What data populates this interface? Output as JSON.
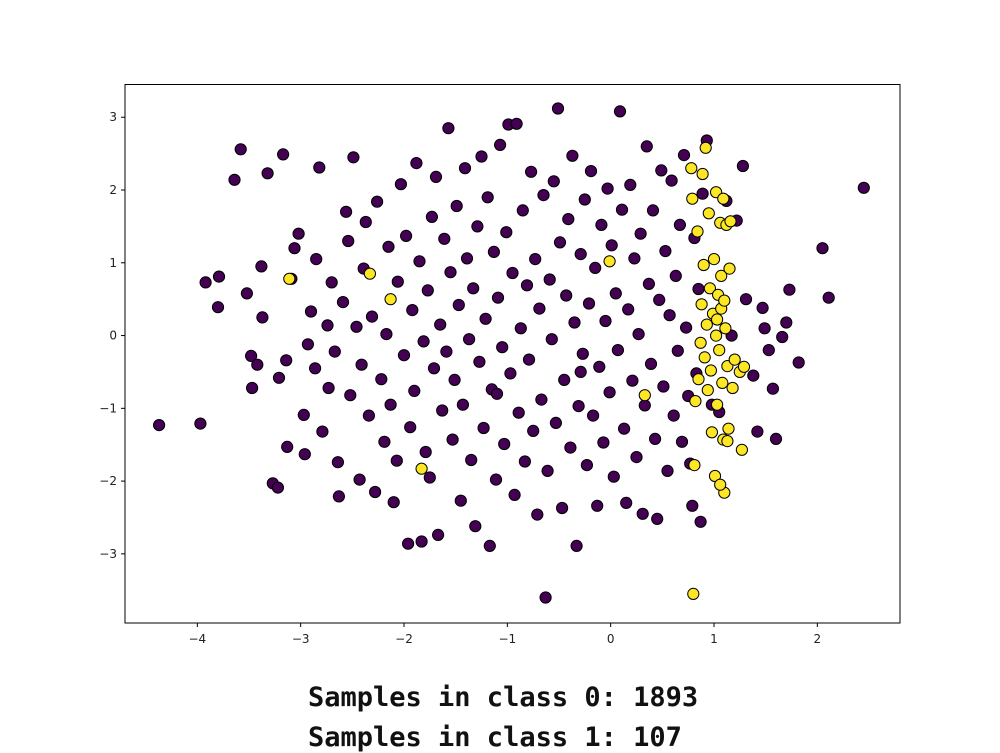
{
  "captions": {
    "class0": "Samples in class 0: 1893",
    "class1": "Samples in class 1: 107"
  },
  "colors": {
    "class0": "#440154",
    "class1": "#fde725",
    "edge": "#000000"
  },
  "chart_data": {
    "type": "scatter",
    "title": "",
    "xlabel": "",
    "ylabel": "",
    "xlim": [
      -4.7,
      2.8
    ],
    "ylim": [
      -3.95,
      3.45
    ],
    "grid": false,
    "xticks": [
      -4,
      -3,
      -2,
      -1,
      0,
      1,
      2
    ],
    "yticks": [
      -3,
      -2,
      -1,
      0,
      1,
      2,
      3
    ],
    "series": [
      {
        "class": 0,
        "color": "#440154",
        "points": [
          [
            -4.37,
            -1.23
          ],
          [
            -3.97,
            -1.21
          ],
          [
            -3.92,
            0.73
          ],
          [
            -3.8,
            0.39
          ],
          [
            -3.79,
            0.81
          ],
          [
            -3.64,
            2.14
          ],
          [
            -3.58,
            2.56
          ],
          [
            -3.52,
            0.58
          ],
          [
            -3.48,
            -0.28
          ],
          [
            -3.47,
            -0.72
          ],
          [
            -3.42,
            -0.4
          ],
          [
            -3.38,
            0.95
          ],
          [
            -3.37,
            0.25
          ],
          [
            -3.32,
            2.23
          ],
          [
            -3.27,
            -2.03
          ],
          [
            -3.22,
            -2.09
          ],
          [
            -3.21,
            -0.58
          ],
          [
            -3.17,
            2.49
          ],
          [
            -3.14,
            -0.34
          ],
          [
            -3.13,
            -1.53
          ],
          [
            -3.09,
            0.78
          ],
          [
            -3.06,
            1.2
          ],
          [
            -3.02,
            1.4
          ],
          [
            -2.97,
            -1.09
          ],
          [
            -2.96,
            -1.63
          ],
          [
            -2.93,
            -0.12
          ],
          [
            -2.9,
            0.33
          ],
          [
            -2.86,
            -0.45
          ],
          [
            -2.85,
            1.05
          ],
          [
            -2.82,
            2.31
          ],
          [
            -2.79,
            -1.32
          ],
          [
            -2.74,
            0.14
          ],
          [
            -2.73,
            -0.72
          ],
          [
            -2.7,
            0.73
          ],
          [
            -2.67,
            -0.22
          ],
          [
            -2.64,
            -1.74
          ],
          [
            -2.63,
            -2.21
          ],
          [
            -2.59,
            0.46
          ],
          [
            -2.56,
            1.7
          ],
          [
            -2.54,
            1.3
          ],
          [
            -2.52,
            -0.82
          ],
          [
            -2.49,
            2.45
          ],
          [
            -2.46,
            0.12
          ],
          [
            -2.43,
            -1.98
          ],
          [
            -2.41,
            -0.4
          ],
          [
            -2.39,
            0.92
          ],
          [
            -2.37,
            1.56
          ],
          [
            -2.34,
            -1.1
          ],
          [
            -2.31,
            0.26
          ],
          [
            -2.28,
            -2.15
          ],
          [
            -2.26,
            1.84
          ],
          [
            -2.22,
            -0.6
          ],
          [
            -2.19,
            -1.46
          ],
          [
            -2.17,
            0.02
          ],
          [
            -2.15,
            1.22
          ],
          [
            -2.13,
            -0.95
          ],
          [
            -2.1,
            -2.29
          ],
          [
            -2.07,
            -1.72
          ],
          [
            -2.06,
            0.74
          ],
          [
            -2.03,
            2.08
          ],
          [
            -2.0,
            -0.27
          ],
          [
            -1.98,
            1.37
          ],
          [
            -1.96,
            -2.86
          ],
          [
            -1.94,
            -1.26
          ],
          [
            -1.92,
            0.35
          ],
          [
            -1.9,
            -0.76
          ],
          [
            -1.88,
            2.37
          ],
          [
            -1.85,
            1.02
          ],
          [
            -1.83,
            -2.83
          ],
          [
            -1.81,
            -0.08
          ],
          [
            -1.79,
            -1.6
          ],
          [
            -1.77,
            0.62
          ],
          [
            -1.75,
            -1.95
          ],
          [
            -1.73,
            1.63
          ],
          [
            -1.71,
            -0.45
          ],
          [
            -1.69,
            2.18
          ],
          [
            -1.67,
            -2.74
          ],
          [
            -1.65,
            0.15
          ],
          [
            -1.63,
            -1.03
          ],
          [
            -1.61,
            1.33
          ],
          [
            -1.59,
            -0.22
          ],
          [
            -1.57,
            2.85
          ],
          [
            -1.55,
            0.87
          ],
          [
            -1.53,
            -1.43
          ],
          [
            -1.51,
            -0.61
          ],
          [
            -1.49,
            1.78
          ],
          [
            -1.47,
            0.42
          ],
          [
            -1.45,
            -2.27
          ],
          [
            -1.43,
            -0.95
          ],
          [
            -1.41,
            2.3
          ],
          [
            -1.39,
            1.06
          ],
          [
            -1.37,
            -0.05
          ],
          [
            -1.35,
            -1.71
          ],
          [
            -1.33,
            0.65
          ],
          [
            -1.31,
            -2.62
          ],
          [
            -1.29,
            1.5
          ],
          [
            -1.27,
            -0.36
          ],
          [
            -1.25,
            2.46
          ],
          [
            -1.23,
            -1.27
          ],
          [
            -1.21,
            0.23
          ],
          [
            -1.19,
            1.9
          ],
          [
            -1.17,
            -2.89
          ],
          [
            -1.15,
            -0.74
          ],
          [
            -1.13,
            1.15
          ],
          [
            -1.11,
            -1.98
          ],
          [
            -1.09,
            0.52
          ],
          [
            -1.07,
            2.62
          ],
          [
            -1.05,
            -0.16
          ],
          [
            -1.03,
            -1.49
          ],
          [
            -1.01,
            1.42
          ],
          [
            -0.99,
            2.9
          ],
          [
            -0.97,
            -0.52
          ],
          [
            -0.95,
            0.86
          ],
          [
            -0.93,
            -2.19
          ],
          [
            -0.91,
            2.91
          ],
          [
            -0.89,
            -1.06
          ],
          [
            -0.87,
            0.1
          ],
          [
            -0.85,
            1.72
          ],
          [
            -0.83,
            -1.73
          ],
          [
            -0.81,
            0.69
          ],
          [
            -0.79,
            -0.33
          ],
          [
            -0.77,
            2.25
          ],
          [
            -0.75,
            -1.31
          ],
          [
            -0.73,
            1.05
          ],
          [
            -0.71,
            -2.46
          ],
          [
            -0.69,
            0.37
          ],
          [
            -0.67,
            -0.88
          ],
          [
            -0.65,
            1.93
          ],
          [
            -0.63,
            -3.6
          ],
          [
            -0.61,
            -1.86
          ],
          [
            -0.59,
            0.77
          ],
          [
            -0.57,
            -0.05
          ],
          [
            -0.55,
            2.12
          ],
          [
            -0.53,
            -1.2
          ],
          [
            -0.51,
            3.12
          ],
          [
            -0.49,
            1.28
          ],
          [
            -0.47,
            -2.37
          ],
          [
            -0.45,
            -0.61
          ],
          [
            -0.43,
            0.55
          ],
          [
            -0.41,
            1.6
          ],
          [
            -0.39,
            -1.54
          ],
          [
            -0.37,
            2.47
          ],
          [
            -0.35,
            0.18
          ],
          [
            -0.33,
            -2.89
          ],
          [
            -0.31,
            -0.97
          ],
          [
            -0.29,
            1.12
          ],
          [
            -0.27,
            -0.25
          ],
          [
            -0.25,
            1.87
          ],
          [
            -0.23,
            -1.78
          ],
          [
            -0.21,
            0.44
          ],
          [
            -0.19,
            2.26
          ],
          [
            -0.17,
            -1.1
          ],
          [
            -0.15,
            0.93
          ],
          [
            -0.13,
            -2.34
          ],
          [
            -0.11,
            -0.43
          ],
          [
            -0.09,
            1.52
          ],
          [
            -0.07,
            -1.47
          ],
          [
            -0.05,
            0.2
          ],
          [
            -0.03,
            2.02
          ],
          [
            -0.01,
            -0.78
          ],
          [
            0.01,
            1.24
          ],
          [
            0.03,
            -1.94
          ],
          [
            0.05,
            0.58
          ],
          [
            0.07,
            -0.2
          ],
          [
            0.09,
            3.08
          ],
          [
            0.11,
            1.73
          ],
          [
            0.13,
            -1.28
          ],
          [
            0.15,
            -2.3
          ],
          [
            0.17,
            0.36
          ],
          [
            0.19,
            2.07
          ],
          [
            0.21,
            -0.62
          ],
          [
            0.23,
            1.06
          ],
          [
            0.25,
            -1.67
          ],
          [
            0.27,
            0.02
          ],
          [
            0.29,
            1.4
          ],
          [
            0.31,
            -2.45
          ],
          [
            0.33,
            -0.96
          ],
          [
            0.35,
            2.6
          ],
          [
            0.37,
            0.71
          ],
          [
            0.39,
            -0.39
          ],
          [
            0.41,
            1.72
          ],
          [
            0.43,
            -1.42
          ],
          [
            0.45,
            -2.52
          ],
          [
            0.47,
            0.49
          ],
          [
            0.49,
            2.27
          ],
          [
            0.51,
            -0.7
          ],
          [
            0.53,
            1.16
          ],
          [
            0.55,
            -1.86
          ],
          [
            0.57,
            0.28
          ],
          [
            0.59,
            2.13
          ],
          [
            0.61,
            -1.1
          ],
          [
            0.63,
            0.82
          ],
          [
            0.65,
            -0.21
          ],
          [
            0.67,
            1.52
          ],
          [
            0.69,
            -1.46
          ],
          [
            0.71,
            2.48
          ],
          [
            0.73,
            0.11
          ],
          [
            0.75,
            -0.83
          ],
          [
            0.77,
            -1.76
          ],
          [
            0.79,
            -2.34
          ],
          [
            0.81,
            1.34
          ],
          [
            0.83,
            -0.52
          ],
          [
            0.85,
            0.64
          ],
          [
            0.87,
            -2.56
          ],
          [
            0.89,
            1.95
          ],
          [
            0.93,
            2.68
          ],
          [
            0.98,
            -0.95
          ],
          [
            1.05,
            -1.05
          ],
          [
            1.12,
            1.85
          ],
          [
            1.17,
            0.0
          ],
          [
            1.22,
            1.58
          ],
          [
            1.28,
            2.33
          ],
          [
            1.31,
            0.5
          ],
          [
            1.38,
            -0.55
          ],
          [
            1.42,
            -1.32
          ],
          [
            1.47,
            0.38
          ],
          [
            1.49,
            0.1
          ],
          [
            1.53,
            -0.2
          ],
          [
            1.57,
            -0.73
          ],
          [
            1.6,
            -1.42
          ],
          [
            1.66,
            -0.02
          ],
          [
            1.7,
            0.18
          ],
          [
            1.73,
            0.63
          ],
          [
            1.82,
            -0.37
          ],
          [
            2.05,
            1.2
          ],
          [
            2.11,
            0.52
          ],
          [
            2.45,
            2.03
          ],
          [
            -0.29,
            -0.5
          ],
          [
            -1.1,
            -0.8
          ]
        ]
      },
      {
        "class": 1,
        "color": "#fde725",
        "points": [
          [
            -3.11,
            0.78
          ],
          [
            -2.33,
            0.85
          ],
          [
            -2.13,
            0.5
          ],
          [
            -1.83,
            -1.83
          ],
          [
            -0.01,
            1.02
          ],
          [
            0.33,
            -0.82
          ],
          [
            0.78,
            2.3
          ],
          [
            0.79,
            1.88
          ],
          [
            0.8,
            -3.55
          ],
          [
            0.81,
            -1.78
          ],
          [
            0.82,
            -0.9
          ],
          [
            0.84,
            1.43
          ],
          [
            0.85,
            -0.6
          ],
          [
            0.87,
            -0.1
          ],
          [
            0.88,
            0.43
          ],
          [
            0.89,
            2.22
          ],
          [
            0.9,
            0.97
          ],
          [
            0.91,
            -0.3
          ],
          [
            0.92,
            2.58
          ],
          [
            0.93,
            0.15
          ],
          [
            0.94,
            -0.75
          ],
          [
            0.95,
            1.68
          ],
          [
            0.96,
            0.65
          ],
          [
            0.97,
            -0.48
          ],
          [
            0.98,
            -1.33
          ],
          [
            0.99,
            0.3
          ],
          [
            1.0,
            1.05
          ],
          [
            1.01,
            -1.93
          ],
          [
            1.02,
            0.0
          ],
          [
            1.02,
            1.97
          ],
          [
            1.03,
            -0.95
          ],
          [
            1.04,
            0.56
          ],
          [
            1.05,
            -0.2
          ],
          [
            1.06,
            1.55
          ],
          [
            1.07,
            0.82
          ],
          [
            1.08,
            -0.65
          ],
          [
            1.09,
            1.88
          ],
          [
            1.1,
            -2.16
          ],
          [
            1.11,
            0.1
          ],
          [
            1.12,
            1.52
          ],
          [
            1.13,
            -0.42
          ],
          [
            1.14,
            -1.28
          ],
          [
            1.15,
            0.92
          ],
          [
            1.16,
            1.57
          ],
          [
            1.18,
            -0.72
          ],
          [
            1.2,
            -0.33
          ],
          [
            1.25,
            -0.5
          ],
          [
            1.27,
            -1.57
          ],
          [
            1.29,
            -0.43
          ],
          [
            1.09,
            -1.43
          ],
          [
            1.06,
            -2.05
          ],
          [
            1.13,
            -1.45
          ],
          [
            1.03,
            0.22
          ],
          [
            1.07,
            0.37
          ],
          [
            1.1,
            0.48
          ]
        ]
      }
    ]
  }
}
